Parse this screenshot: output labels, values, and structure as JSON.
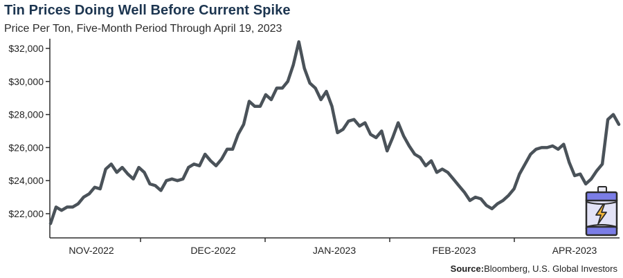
{
  "title": "Tin Prices Doing Well Before Current Spike",
  "subtitle": "Price Per Ton, Five-Month Period Through April 19, 2023",
  "source_label": "Source:",
  "source_text": "Bloomberg, U.S. Global Investors",
  "icon": "battery-charge-icon",
  "colors": {
    "line": "#4a5259",
    "title": "#1c3550",
    "battery_body": "#7b7de6",
    "battery_band": "#e3e3f6",
    "bolt": "#f3b73a"
  },
  "chart_data": {
    "type": "line",
    "title": "Tin Prices Doing Well Before Current Spike",
    "subtitle": "Price Per Ton, Five-Month Period Through April 19, 2023",
    "xlabel": "",
    "ylabel": "",
    "ylim": [
      20800,
      32500
    ],
    "yticks": [
      22000,
      24000,
      26000,
      28000,
      30000,
      32000
    ],
    "ytick_labels": [
      "$22,000",
      "$24,000",
      "$26,000",
      "$28,000",
      "$30,000",
      "$32,000"
    ],
    "xtick_labels": [
      "NOV-2022",
      "DEC-2022",
      "JAN-2023",
      "FEB-2023",
      "APR-2023"
    ],
    "grid": false,
    "series": [
      {
        "values": [
          21400,
          22400,
          22200,
          22400,
          22400,
          22600,
          23000,
          23200,
          23600,
          23500,
          24700,
          25000,
          24500,
          24800,
          24400,
          24100,
          24800,
          24500,
          23800,
          23700,
          23400,
          24000,
          24100,
          24000,
          24100,
          24800,
          25000,
          24900,
          25600,
          25200,
          24900,
          25300,
          25900,
          25900,
          26800,
          27400,
          28800,
          28500,
          28500,
          29200,
          28900,
          29600,
          29600,
          30000,
          31000,
          32400,
          30800,
          29900,
          29600,
          28900,
          29400,
          28500,
          26900,
          27100,
          27600,
          27700,
          27300,
          27500,
          26800,
          26600,
          27000,
          25800,
          26600,
          27500,
          26700,
          26100,
          25600,
          25400,
          24900,
          25200,
          24500,
          24700,
          24500,
          24100,
          23700,
          23300,
          22800,
          23000,
          22900,
          22500,
          22300,
          22600,
          22800,
          23100,
          23500,
          24400,
          25000,
          25600,
          25900,
          26000,
          26000,
          26100,
          25900,
          26200,
          25100,
          24300,
          24400,
          23800,
          24100,
          24600,
          25000,
          27700,
          28000,
          27400
        ]
      }
    ]
  }
}
